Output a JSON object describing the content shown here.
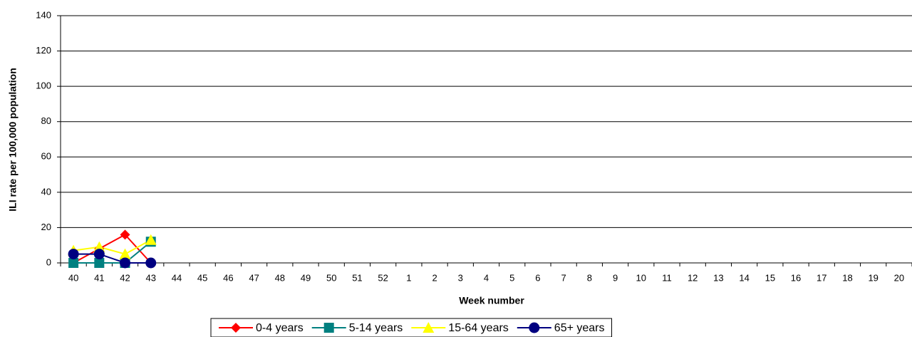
{
  "chart_data": {
    "type": "line",
    "x_label": "Week number",
    "y_label": "ILI rate per 100,000 population",
    "categories": [
      "40",
      "41",
      "42",
      "43",
      "44",
      "45",
      "46",
      "47",
      "48",
      "49",
      "50",
      "51",
      "52",
      "1",
      "2",
      "3",
      "4",
      "5",
      "6",
      "7",
      "8",
      "9",
      "10",
      "11",
      "12",
      "13",
      "14",
      "15",
      "16",
      "17",
      "18",
      "19",
      "20"
    ],
    "series": [
      {
        "name": "0-4 years",
        "color": "#ff0000",
        "values": [
          0,
          8,
          16,
          0,
          null,
          null,
          null,
          null,
          null,
          null,
          null,
          null,
          null,
          null,
          null,
          null,
          null,
          null,
          null,
          null,
          null,
          null,
          null,
          null,
          null,
          null,
          null,
          null,
          null,
          null,
          null,
          null,
          null
        ]
      },
      {
        "name": "5-14 years",
        "color": "#008080",
        "values": [
          0,
          0,
          0,
          12,
          null,
          null,
          null,
          null,
          null,
          null,
          null,
          null,
          null,
          null,
          null,
          null,
          null,
          null,
          null,
          null,
          null,
          null,
          null,
          null,
          null,
          null,
          null,
          null,
          null,
          null,
          null,
          null,
          null
        ]
      },
      {
        "name": "15-64 years",
        "color": "#ffff00",
        "values": [
          7,
          9,
          5,
          13,
          null,
          null,
          null,
          null,
          null,
          null,
          null,
          null,
          null,
          null,
          null,
          null,
          null,
          null,
          null,
          null,
          null,
          null,
          null,
          null,
          null,
          null,
          null,
          null,
          null,
          null,
          null,
          null,
          null
        ]
      },
      {
        "name": "65+ years",
        "color": "#000080",
        "values": [
          5,
          5,
          0,
          0,
          null,
          null,
          null,
          null,
          null,
          null,
          null,
          null,
          null,
          null,
          null,
          null,
          null,
          null,
          null,
          null,
          null,
          null,
          null,
          null,
          null,
          null,
          null,
          null,
          null,
          null,
          null,
          null,
          null
        ]
      }
    ],
    "ylim": [
      0,
      140
    ],
    "yticks": [
      0,
      20,
      40,
      60,
      80,
      100,
      120,
      140
    ],
    "grid": true,
    "legend": "bottom"
  }
}
